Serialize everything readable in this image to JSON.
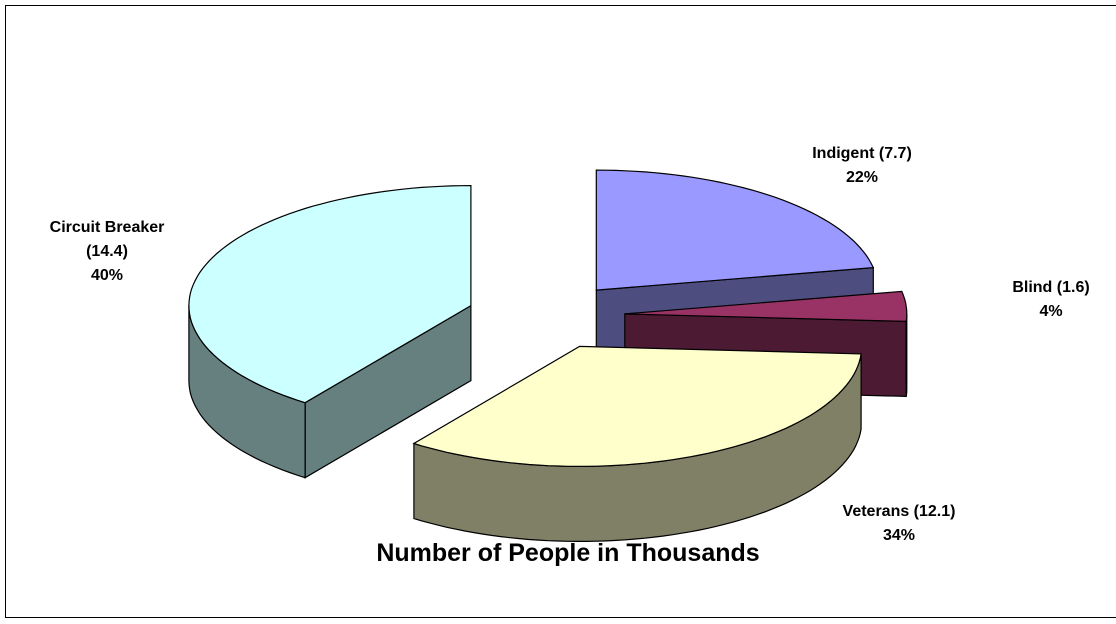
{
  "chart_data": {
    "type": "pie",
    "title": "Number of People in Thousands",
    "categories": [
      "Indigent (7.7)",
      "Blind (1.6)",
      "Veterans (12.1)",
      "Circuit Breaker (14.4)"
    ],
    "values": [
      22,
      4,
      34,
      40
    ],
    "value_labels": [
      "22%",
      "4%",
      "34%",
      "40%"
    ],
    "colors": [
      "#9999ff",
      "#993366",
      "#ffffcc",
      "#ccffff"
    ],
    "side_colors": [
      "#4d4d80",
      "#4d1a33",
      "#808066",
      "#668080"
    ]
  }
}
